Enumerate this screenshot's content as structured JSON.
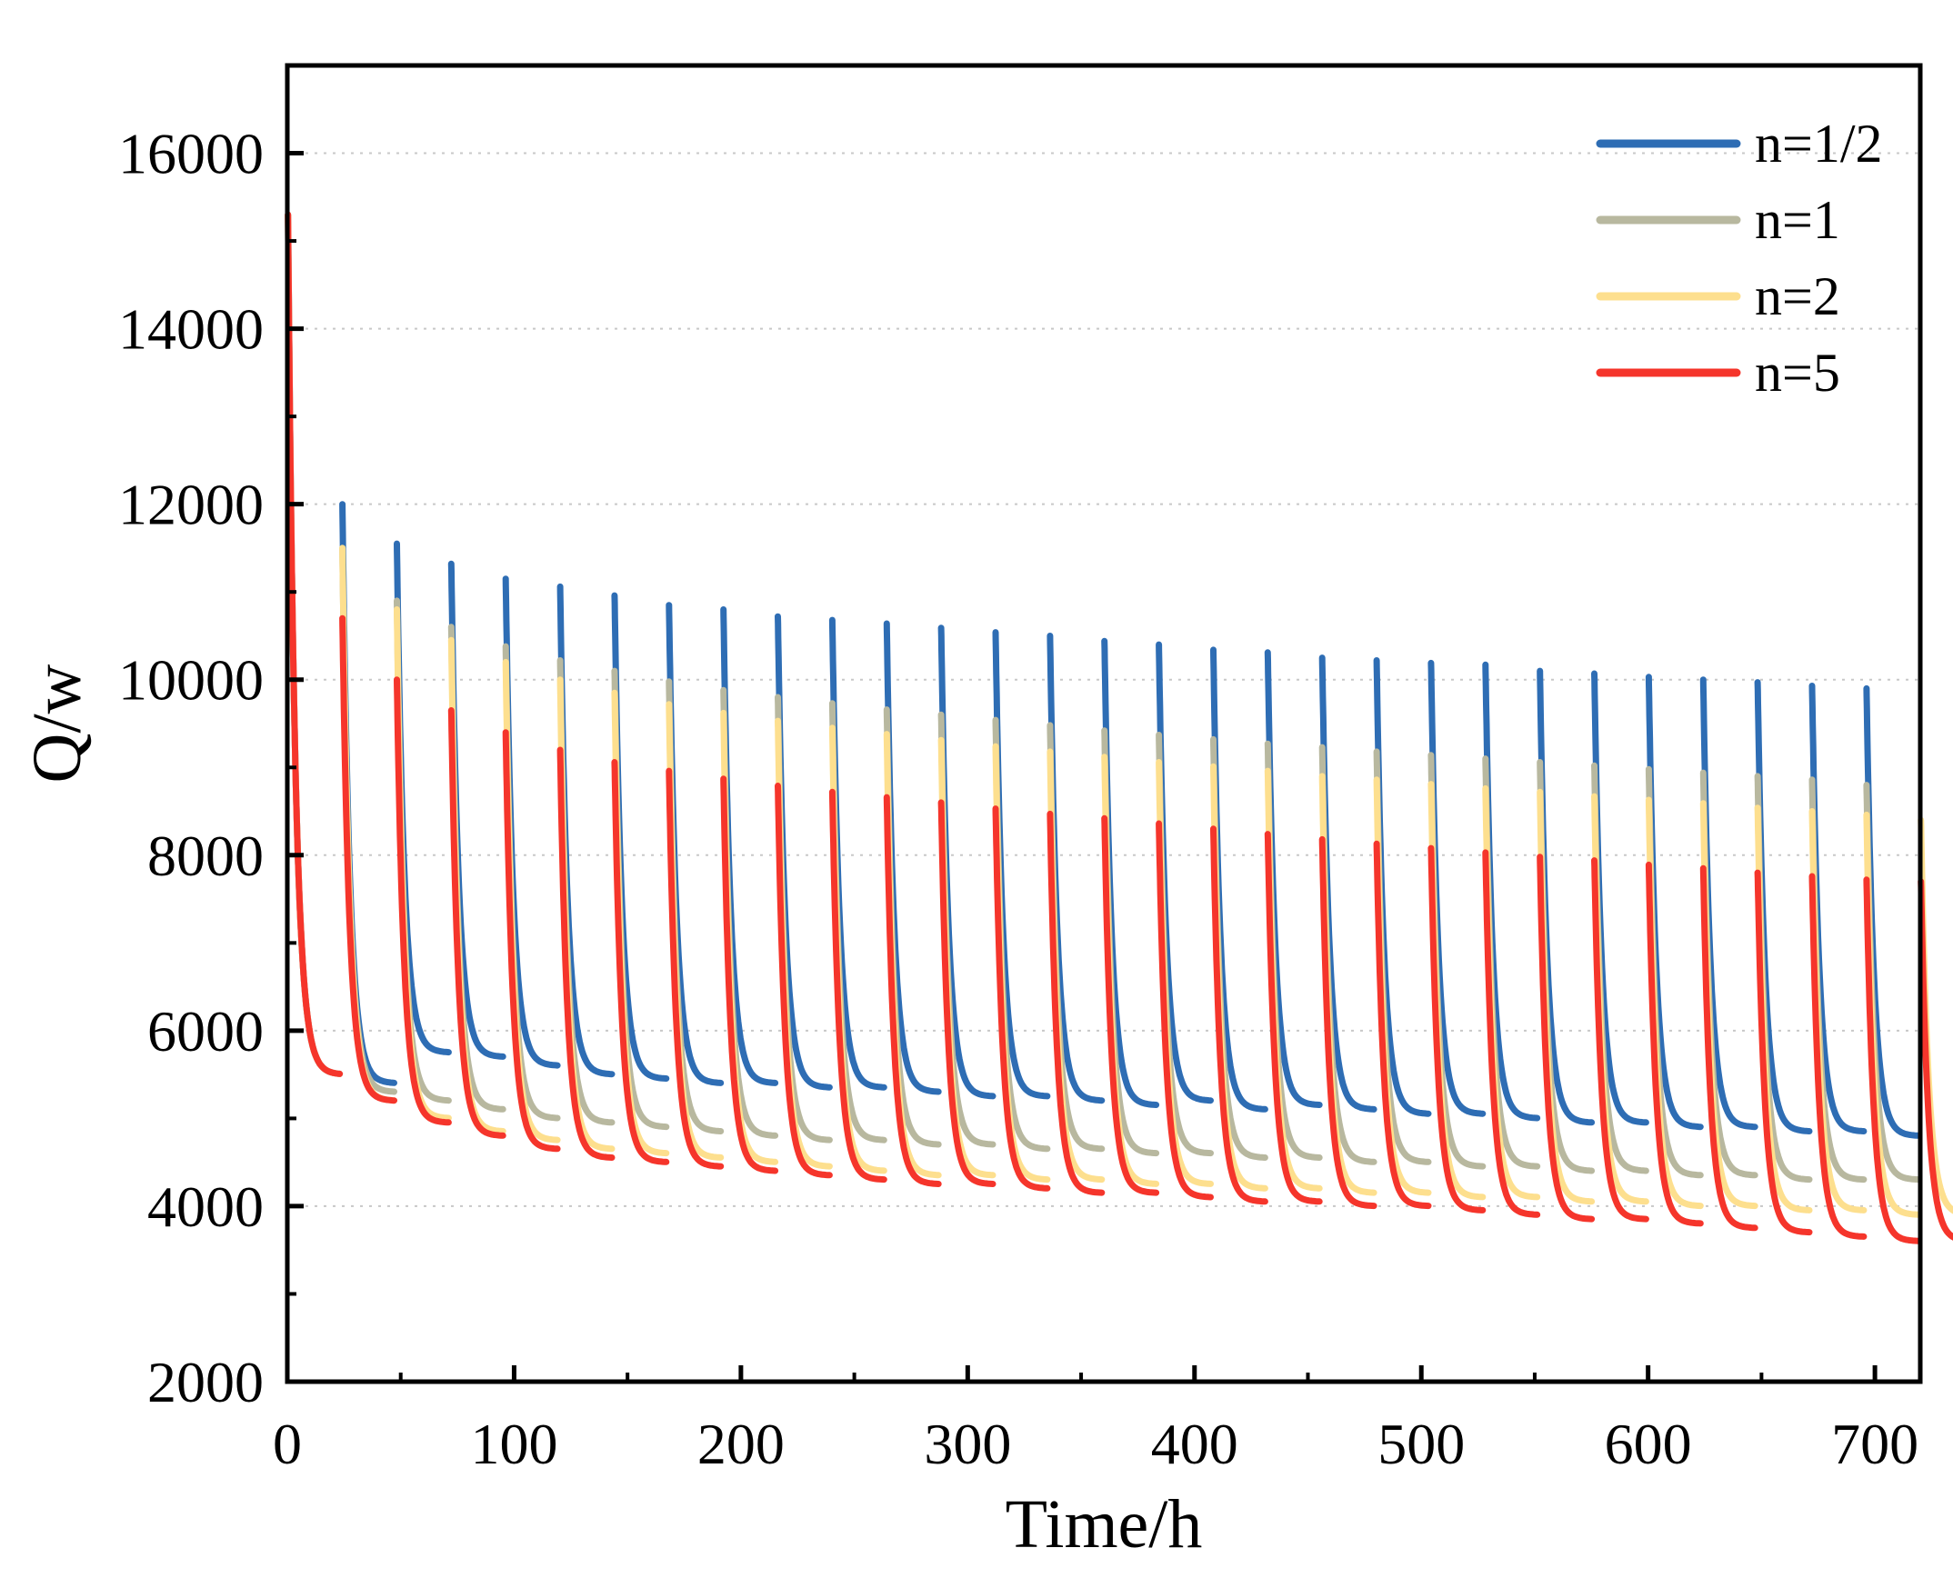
{
  "chart_data": {
    "type": "line",
    "title": "",
    "xlabel": "Time/h",
    "ylabel": "Q/w",
    "xlim": [
      0,
      720
    ],
    "ylim": [
      2000,
      17000
    ],
    "xticks": [
      0,
      100,
      200,
      300,
      400,
      500,
      600,
      700
    ],
    "xtick_labels": [
      "0",
      "100",
      "200",
      "300",
      "400",
      "500",
      "600",
      "700"
    ],
    "yticks": [
      2000,
      4000,
      6000,
      8000,
      10000,
      12000,
      14000,
      16000
    ],
    "ytick_labels": [
      "2000",
      "4000",
      "6000",
      "8000",
      "10000",
      "12000",
      "14000",
      "16000"
    ],
    "grid": "horizontal dotted",
    "legend_position": "top-right",
    "cycle_period_hours": 24,
    "cycles": 30,
    "series": [
      {
        "name": "n=1/2",
        "color": "#2E6DB4",
        "first_peak": 15300,
        "peaks": [
          12000,
          11550,
          11320,
          11150,
          11060,
          10960,
          10850,
          10800,
          10720,
          10680,
          10640,
          10590,
          10540,
          10500,
          10440,
          10400,
          10340,
          10310,
          10250,
          10220,
          10190,
          10170,
          10100,
          10070,
          10030,
          10000,
          9970,
          9930,
          9900
        ],
        "troughs": [
          5500,
          5400,
          5750,
          5700,
          5600,
          5500,
          5450,
          5400,
          5400,
          5350,
          5350,
          5300,
          5250,
          5250,
          5200,
          5150,
          5200,
          5100,
          5150,
          5100,
          5050,
          5050,
          5000,
          4950,
          4950,
          4900,
          4900,
          4850,
          4850,
          4800
        ]
      },
      {
        "name": "n=1",
        "color": "#B8B89F",
        "first_peak": 15300,
        "peaks": [
          11500,
          10900,
          10600,
          10380,
          10220,
          10100,
          9980,
          9880,
          9800,
          9730,
          9660,
          9600,
          9540,
          9480,
          9420,
          9370,
          9320,
          9270,
          9230,
          9180,
          9140,
          9100,
          9060,
          9020,
          8980,
          8940,
          8900,
          8860,
          8800
        ],
        "troughs": [
          5500,
          5300,
          5200,
          5100,
          5000,
          4950,
          4900,
          4850,
          4800,
          4750,
          4750,
          4700,
          4700,
          4650,
          4650,
          4600,
          4600,
          4550,
          4550,
          4500,
          4500,
          4450,
          4450,
          4400,
          4400,
          4350,
          4350,
          4300,
          4300,
          4300
        ]
      },
      {
        "name": "n=2",
        "color": "#FDDF8E",
        "first_peak": 15300,
        "peaks": [
          11500,
          10800,
          10450,
          10200,
          10000,
          9850,
          9720,
          9620,
          9530,
          9450,
          9380,
          9310,
          9240,
          9180,
          9120,
          9060,
          9010,
          8960,
          8900,
          8860,
          8810,
          8760,
          8720,
          8670,
          8630,
          8590,
          8540,
          8500,
          8460,
          8400
        ],
        "troughs": [
          5500,
          5200,
          5000,
          4850,
          4750,
          4650,
          4600,
          4550,
          4500,
          4450,
          4400,
          4350,
          4350,
          4300,
          4300,
          4250,
          4250,
          4200,
          4200,
          4150,
          4150,
          4100,
          4100,
          4050,
          4050,
          4000,
          4000,
          3950,
          3950,
          3900
        ]
      },
      {
        "name": "n=5",
        "color": "#F5352B",
        "first_peak": 15300,
        "peaks": [
          10700,
          10000,
          9650,
          9400,
          9200,
          9060,
          8960,
          8870,
          8790,
          8720,
          8660,
          8600,
          8530,
          8470,
          8420,
          8360,
          8300,
          8240,
          8180,
          8130,
          8080,
          8030,
          7980,
          7940,
          7890,
          7850,
          7800,
          7760,
          7720,
          7700
        ],
        "troughs": [
          5500,
          5200,
          4950,
          4800,
          4650,
          4550,
          4500,
          4450,
          4400,
          4350,
          4300,
          4250,
          4250,
          4200,
          4150,
          4150,
          4100,
          4050,
          4050,
          4000,
          4000,
          3950,
          3900,
          3850,
          3850,
          3800,
          3750,
          3700,
          3650,
          3600
        ]
      }
    ]
  }
}
